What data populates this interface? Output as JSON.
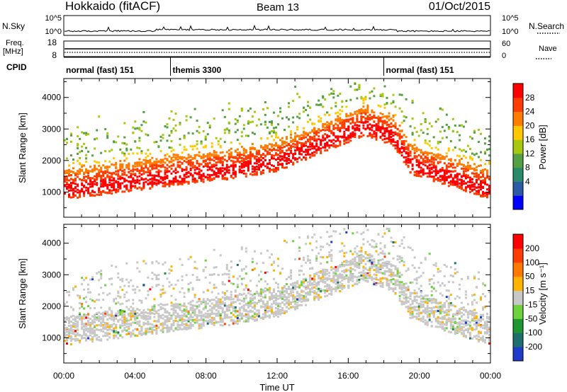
{
  "header": {
    "site": "Hokkaido (fitACF)",
    "beam": "Beam 13",
    "date": "01/Oct/2015"
  },
  "strip_panel": {
    "left_label": "N.Sky",
    "left_ticks": [
      "10^5",
      "10^0"
    ],
    "right_ticks": [
      "10^5",
      "10^0"
    ],
    "right_label": "N.Search"
  },
  "freq_panel": {
    "left_label_1": "Freq.",
    "left_label_2": "[MHz]",
    "left_ticks": [
      "18",
      "8"
    ],
    "right_ticks": [
      "60",
      "0"
    ],
    "right_label": "Nave"
  },
  "cpid_panel": {
    "label": "CPID",
    "segments": [
      {
        "name": "normal (fast) 151",
        "start_hour": 0
      },
      {
        "name": "themis 3300",
        "start_hour": 6
      },
      {
        "name": "normal (fast) 151",
        "start_hour": 18
      }
    ]
  },
  "chart_data": [
    {
      "type": "heatmap",
      "ylabel": "Slant Range [km]",
      "yticks": [
        "4000",
        "3000",
        "2000",
        "1000"
      ],
      "ylim": [
        200,
        4600
      ],
      "colorbar_label": "Power [dB]",
      "colorbar_ticks": [
        "28",
        "24",
        "20",
        "16",
        "12",
        "8",
        "4"
      ],
      "colors": [
        "#0000ff",
        "#2c5aa5",
        "#2a8a6a",
        "#54a044",
        "#a8c810",
        "#ffc800",
        "#ff7c00",
        "#ff3c00",
        "#ff0000"
      ]
    },
    {
      "type": "heatmap",
      "ylabel": "Slant Range [km]",
      "yticks": [
        "4000",
        "3000",
        "2000",
        "1000"
      ],
      "ylim": [
        200,
        4600
      ],
      "colorbar_label": "Velocity [m s⁻¹]",
      "colorbar_ticks": [
        "200",
        "100",
        "50",
        "15",
        "-15",
        "-50",
        "-100",
        "-200"
      ],
      "colors": [
        "#1e3cc8",
        "#1e6e6e",
        "#1e9632",
        "#6ed23c",
        "#c8c8c8",
        "#ffb400",
        "#ff7800",
        "#ff3c00",
        "#ff0000"
      ]
    }
  ],
  "time_axis": {
    "label": "Time UT",
    "ticks": [
      "00:00",
      "04:00",
      "08:00",
      "12:00",
      "16:00",
      "20:00",
      "00:00"
    ]
  }
}
